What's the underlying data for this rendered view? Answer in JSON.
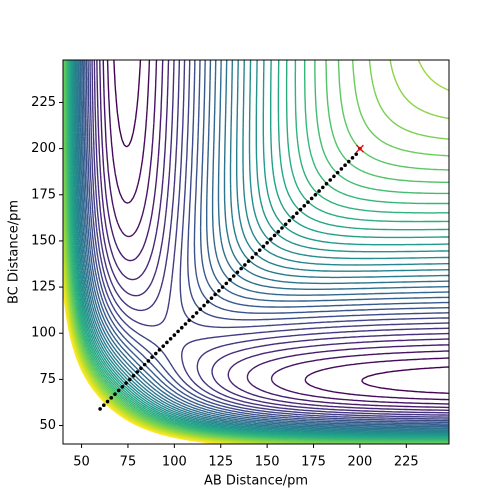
{
  "chart_data": {
    "type": "contour",
    "xlabel": "AB Distance/pm",
    "ylabel": "BC Distance/pm",
    "xlim": [
      40,
      248
    ],
    "ylim": [
      40,
      248
    ],
    "xticks": [
      50,
      75,
      100,
      125,
      150,
      175,
      200,
      225
    ],
    "yticks": [
      50,
      75,
      100,
      125,
      150,
      175,
      200,
      225
    ],
    "colormap": "viridis",
    "trajectory": {
      "color": "#000000",
      "x": [
        60,
        62,
        64,
        66,
        68,
        70,
        72,
        74,
        76,
        78,
        80,
        82,
        84,
        86,
        88,
        90,
        92,
        94,
        96,
        98,
        100,
        102,
        104,
        106,
        108,
        110,
        112,
        114,
        116,
        118,
        120,
        122,
        124,
        126,
        128,
        130,
        132,
        134,
        136,
        138,
        140,
        142,
        144,
        146,
        148,
        150,
        152,
        154,
        156,
        158,
        160,
        162,
        164,
        166,
        168,
        170,
        172,
        174,
        176,
        178,
        180,
        182,
        184,
        186,
        188,
        190,
        192,
        194,
        196,
        198,
        200
      ],
      "y": [
        59,
        61,
        63,
        65,
        67,
        69,
        71,
        73,
        75,
        77,
        79,
        81,
        83,
        85,
        87,
        89,
        91,
        93,
        95,
        97,
        99,
        101,
        103,
        105,
        107,
        109,
        111,
        113,
        115,
        117,
        119,
        121,
        123,
        125,
        127,
        129,
        131,
        133,
        135,
        137,
        139,
        141,
        143,
        145,
        147,
        149,
        151,
        153,
        155,
        157,
        159,
        161,
        163,
        165,
        167,
        169,
        171,
        173,
        175,
        177,
        179,
        181,
        183,
        185,
        187,
        189,
        191,
        193,
        195,
        197,
        200
      ]
    },
    "end_point": {
      "x": 200,
      "y": 200,
      "color": "#ff0000"
    }
  }
}
